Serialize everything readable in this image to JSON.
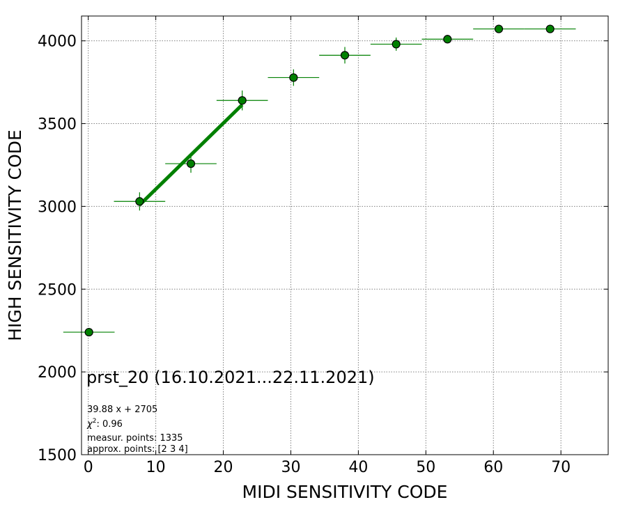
{
  "chart_data": {
    "type": "scatter",
    "xlabel": "MIDI SENSITIVITY CODE",
    "ylabel": "HIGH SENSITIVITY CODE",
    "xlim": [
      -1,
      77
    ],
    "ylim": [
      1500,
      4150
    ],
    "xticks": [
      0,
      10,
      20,
      30,
      40,
      50,
      60,
      70
    ],
    "yticks": [
      1500,
      2000,
      2500,
      3000,
      3500,
      4000
    ],
    "grid": true,
    "grid_style": "dotted",
    "marker_color": "#008000",
    "points": [
      {
        "x": 0.1,
        "y": 2240,
        "xerr": 3.8,
        "yerr": 0
      },
      {
        "x": 7.6,
        "y": 3030,
        "xerr": 3.8,
        "yerr": 55
      },
      {
        "x": 15.2,
        "y": 3258,
        "xerr": 3.8,
        "yerr": 55
      },
      {
        "x": 22.8,
        "y": 3640,
        "xerr": 3.8,
        "yerr": 60
      },
      {
        "x": 30.4,
        "y": 3778,
        "xerr": 3.8,
        "yerr": 50
      },
      {
        "x": 38.0,
        "y": 3913,
        "xerr": 3.8,
        "yerr": 50
      },
      {
        "x": 45.6,
        "y": 3980,
        "xerr": 3.8,
        "yerr": 40
      },
      {
        "x": 53.2,
        "y": 4010,
        "xerr": 3.8,
        "yerr": 25
      },
      {
        "x": 60.8,
        "y": 4072,
        "xerr": 3.8,
        "yerr": 0
      },
      {
        "x": 68.4,
        "y": 4072,
        "xerr": 3.8,
        "yerr": 0
      }
    ],
    "fit_line": {
      "slope": 39.88,
      "intercept": 2705,
      "x_range": [
        7.6,
        22.8
      ]
    },
    "annotations": {
      "title": "prst_20 (16.10.2021...22.11.2021)",
      "fit_text": "39.88 x + 2705",
      "chi2_symbol": "χ",
      "chi2_exp": "2",
      "chi2_value": ": 0.96",
      "measur_points": "measur. points: 1335",
      "approx_points": "approx. points: [2 3 4]"
    }
  }
}
